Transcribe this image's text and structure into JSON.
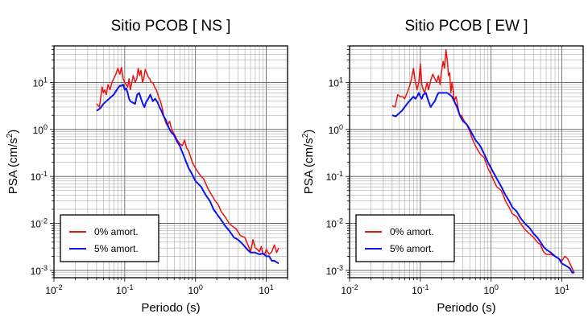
{
  "chart_data": [
    {
      "type": "line",
      "title": "Sitio PCOB [ NS ]",
      "xlabel": "Periodo (s)",
      "ylabel_main": "PSA (cm/s",
      "ylabel_sup": "2",
      "ylabel_close": ")",
      "x_scale": "log",
      "y_scale": "log",
      "xlim": [
        0.01,
        20
      ],
      "ylim": [
        0.0007,
        60
      ],
      "grid": true,
      "legend_position": "bottom-left",
      "x_ticks": [
        {
          "base": "10",
          "exp": "-2",
          "v": 0.01
        },
        {
          "base": "10",
          "exp": "-1",
          "v": 0.1
        },
        {
          "base": "10",
          "exp": "0",
          "v": 1
        },
        {
          "base": "10",
          "exp": "1",
          "v": 10
        }
      ],
      "y_ticks": [
        {
          "base": "10",
          "exp": "1",
          "v": 10
        },
        {
          "base": "10",
          "exp": "0",
          "v": 1
        },
        {
          "base": "10",
          "exp": "-1",
          "v": 0.1
        },
        {
          "base": "10",
          "exp": "-2",
          "v": 0.01
        },
        {
          "base": "10",
          "exp": "-3",
          "v": 0.001
        }
      ],
      "series": [
        {
          "name": "0% amort.",
          "color": "#ee1111",
          "x": [
            0.04,
            0.044,
            0.048,
            0.05,
            0.052,
            0.055,
            0.058,
            0.062,
            0.066,
            0.07,
            0.075,
            0.08,
            0.085,
            0.09,
            0.095,
            0.1,
            0.105,
            0.11,
            0.115,
            0.12,
            0.126,
            0.132,
            0.14,
            0.148,
            0.155,
            0.162,
            0.17,
            0.178,
            0.186,
            0.195,
            0.205,
            0.215,
            0.225,
            0.235,
            0.25,
            0.265,
            0.28,
            0.3,
            0.32,
            0.34,
            0.36,
            0.38,
            0.4,
            0.43,
            0.46,
            0.5,
            0.55,
            0.6,
            0.65,
            0.7,
            0.75,
            0.8,
            0.9,
            1.0,
            1.1,
            1.2,
            1.3,
            1.4,
            1.5,
            1.7,
            1.9,
            2.1,
            2.3,
            2.6,
            3.0,
            3.4,
            3.8,
            4.3,
            5.0,
            5.5,
            6.0,
            6.5,
            7.0,
            7.5,
            8.0,
            8.5,
            9.0,
            9.5,
            10.0,
            11.0,
            12.0,
            13.0,
            14.0,
            15.0
          ],
          "y": [
            3.5,
            3.0,
            8.0,
            6.0,
            7.0,
            5.5,
            9.0,
            7.0,
            10.0,
            12.0,
            15.0,
            20.0,
            15.0,
            21.0,
            12.0,
            10.0,
            9.0,
            8.0,
            12.0,
            7.0,
            10.0,
            14.0,
            10.0,
            12.0,
            20.0,
            14.0,
            18.0,
            10.0,
            12.0,
            19.0,
            16.0,
            13.0,
            12.0,
            10.0,
            10.0,
            8.0,
            7.0,
            5.0,
            4.0,
            2.8,
            1.8,
            1.4,
            1.2,
            1.5,
            1.0,
            0.8,
            0.6,
            0.5,
            0.45,
            0.6,
            0.4,
            0.35,
            0.2,
            0.15,
            0.12,
            0.1,
            0.09,
            0.07,
            0.055,
            0.04,
            0.03,
            0.025,
            0.018,
            0.014,
            0.01,
            0.0085,
            0.0075,
            0.0055,
            0.005,
            0.0035,
            0.0025,
            0.0045,
            0.003,
            0.0028,
            0.0025,
            0.0032,
            0.0022,
            0.0022,
            0.0028,
            0.0022,
            0.0025,
            0.0035,
            0.0024,
            0.003
          ]
        },
        {
          "name": "5% amort.",
          "color": "#0a14ee",
          "x": [
            0.04,
            0.045,
            0.05,
            0.055,
            0.06,
            0.065,
            0.07,
            0.075,
            0.08,
            0.085,
            0.09,
            0.095,
            0.1,
            0.105,
            0.11,
            0.115,
            0.12,
            0.13,
            0.14,
            0.15,
            0.16,
            0.17,
            0.18,
            0.19,
            0.2,
            0.215,
            0.23,
            0.25,
            0.27,
            0.29,
            0.31,
            0.33,
            0.35,
            0.38,
            0.4,
            0.43,
            0.46,
            0.5,
            0.55,
            0.6,
            0.7,
            0.8,
            0.9,
            1.0,
            1.2,
            1.4,
            1.6,
            1.8,
            2.0,
            2.3,
            2.6,
            3.0,
            3.5,
            4.0,
            4.5,
            5.0,
            5.5,
            6.0,
            7.0,
            8.0,
            9.0,
            10.0,
            11.0,
            12.0,
            13.0,
            14.0,
            15.0
          ],
          "y": [
            2.5,
            2.8,
            3.5,
            4.0,
            4.5,
            5.0,
            5.5,
            6.5,
            7.5,
            8.5,
            8.5,
            9.0,
            7.0,
            7.5,
            6.0,
            4.5,
            4.0,
            3.7,
            3.5,
            5.5,
            6.0,
            4.5,
            3.5,
            3.0,
            3.8,
            4.5,
            5.5,
            4.0,
            4.5,
            3.8,
            3.0,
            2.5,
            2.0,
            1.6,
            1.3,
            1.0,
            0.85,
            0.75,
            0.55,
            0.45,
            0.25,
            0.15,
            0.11,
            0.08,
            0.06,
            0.04,
            0.03,
            0.02,
            0.016,
            0.012,
            0.009,
            0.007,
            0.005,
            0.0045,
            0.0038,
            0.0032,
            0.0027,
            0.0024,
            0.0024,
            0.0022,
            0.0023,
            0.002,
            0.002,
            0.0016,
            0.0016,
            0.0015,
            0.0014
          ]
        }
      ]
    },
    {
      "type": "line",
      "title": "Sitio PCOB [ EW ]",
      "xlabel": "Periodo (s)",
      "ylabel_main": "PSA (cm/s",
      "ylabel_sup": "2",
      "ylabel_close": ")",
      "x_scale": "log",
      "y_scale": "log",
      "xlim": [
        0.01,
        20
      ],
      "ylim": [
        0.0007,
        60
      ],
      "grid": true,
      "legend_position": "bottom-left",
      "x_ticks": [
        {
          "base": "10",
          "exp": "-2",
          "v": 0.01
        },
        {
          "base": "10",
          "exp": "-1",
          "v": 0.1
        },
        {
          "base": "10",
          "exp": "0",
          "v": 1
        },
        {
          "base": "10",
          "exp": "1",
          "v": 10
        }
      ],
      "y_ticks": [
        {
          "base": "10",
          "exp": "1",
          "v": 10
        },
        {
          "base": "10",
          "exp": "0",
          "v": 1
        },
        {
          "base": "10",
          "exp": "-1",
          "v": 0.1
        },
        {
          "base": "10",
          "exp": "-2",
          "v": 0.01
        },
        {
          "base": "10",
          "exp": "-3",
          "v": 0.001
        }
      ],
      "series": [
        {
          "name": "0% amort.",
          "color": "#ee1111",
          "x": [
            0.04,
            0.044,
            0.048,
            0.052,
            0.056,
            0.06,
            0.065,
            0.07,
            0.075,
            0.08,
            0.085,
            0.09,
            0.095,
            0.1,
            0.105,
            0.11,
            0.115,
            0.12,
            0.125,
            0.13,
            0.14,
            0.15,
            0.16,
            0.17,
            0.18,
            0.19,
            0.2,
            0.21,
            0.22,
            0.23,
            0.24,
            0.25,
            0.26,
            0.27,
            0.28,
            0.29,
            0.3,
            0.32,
            0.34,
            0.36,
            0.38,
            0.4,
            0.43,
            0.46,
            0.5,
            0.55,
            0.6,
            0.7,
            0.8,
            0.9,
            1.0,
            1.1,
            1.2,
            1.4,
            1.6,
            1.8,
            2.0,
            2.3,
            2.6,
            3.0,
            3.5,
            4.0,
            4.5,
            5.0,
            5.5,
            6.0,
            7.0,
            8.0,
            9.0,
            10.0,
            11.0,
            12.0,
            13.0,
            14.0,
            15.0
          ],
          "y": [
            3.2,
            3.0,
            5.5,
            5.0,
            5.0,
            4.5,
            6.0,
            8.0,
            12.0,
            20.0,
            10.0,
            7.0,
            10.0,
            25.0,
            9.0,
            7.0,
            6.0,
            8.0,
            10.0,
            7.0,
            11.0,
            15.0,
            12.0,
            10.0,
            14.0,
            9.0,
            18.0,
            28.0,
            20.0,
            50.0,
            30.0,
            14.0,
            16.0,
            6.0,
            10.0,
            7.0,
            4.0,
            5.0,
            3.0,
            2.0,
            2.0,
            1.7,
            1.4,
            1.2,
            0.9,
            0.6,
            0.45,
            0.3,
            0.25,
            0.15,
            0.11,
            0.08,
            0.06,
            0.05,
            0.03,
            0.022,
            0.016,
            0.014,
            0.01,
            0.0075,
            0.006,
            0.005,
            0.004,
            0.0035,
            0.0025,
            0.0022,
            0.0022,
            0.002,
            0.0018,
            0.0016,
            0.002,
            0.0018,
            0.0014,
            0.0011,
            0.0009
          ]
        },
        {
          "name": "5% amort.",
          "color": "#0a14ee",
          "x": [
            0.04,
            0.045,
            0.05,
            0.055,
            0.06,
            0.065,
            0.07,
            0.075,
            0.08,
            0.085,
            0.09,
            0.095,
            0.1,
            0.105,
            0.11,
            0.12,
            0.13,
            0.14,
            0.15,
            0.16,
            0.17,
            0.18,
            0.19,
            0.2,
            0.22,
            0.24,
            0.26,
            0.28,
            0.3,
            0.33,
            0.36,
            0.4,
            0.45,
            0.5,
            0.6,
            0.7,
            0.8,
            0.9,
            1.0,
            1.2,
            1.4,
            1.6,
            1.8,
            2.0,
            2.3,
            2.6,
            3.0,
            3.5,
            4.0,
            4.5,
            5.0,
            5.5,
            6.0,
            7.0,
            8.0,
            9.0,
            10.0,
            11.0,
            12.0,
            13.0,
            14.0,
            15.0
          ],
          "y": [
            2.0,
            1.9,
            2.2,
            2.5,
            3.0,
            3.5,
            4.0,
            4.5,
            5.0,
            4.5,
            5.0,
            6.0,
            5.0,
            4.5,
            5.5,
            6.0,
            4.0,
            3.0,
            3.5,
            4.0,
            5.0,
            6.0,
            6.0,
            6.0,
            6.0,
            6.0,
            5.5,
            5.0,
            4.0,
            3.0,
            2.0,
            1.5,
            1.3,
            1.0,
            0.6,
            0.45,
            0.3,
            0.2,
            0.15,
            0.09,
            0.06,
            0.04,
            0.03,
            0.022,
            0.018,
            0.013,
            0.01,
            0.008,
            0.006,
            0.005,
            0.004,
            0.0032,
            0.0028,
            0.0024,
            0.002,
            0.0018,
            0.0014,
            0.0013,
            0.0012,
            0.0011,
            0.0009,
            0.0009
          ]
        }
      ]
    }
  ]
}
